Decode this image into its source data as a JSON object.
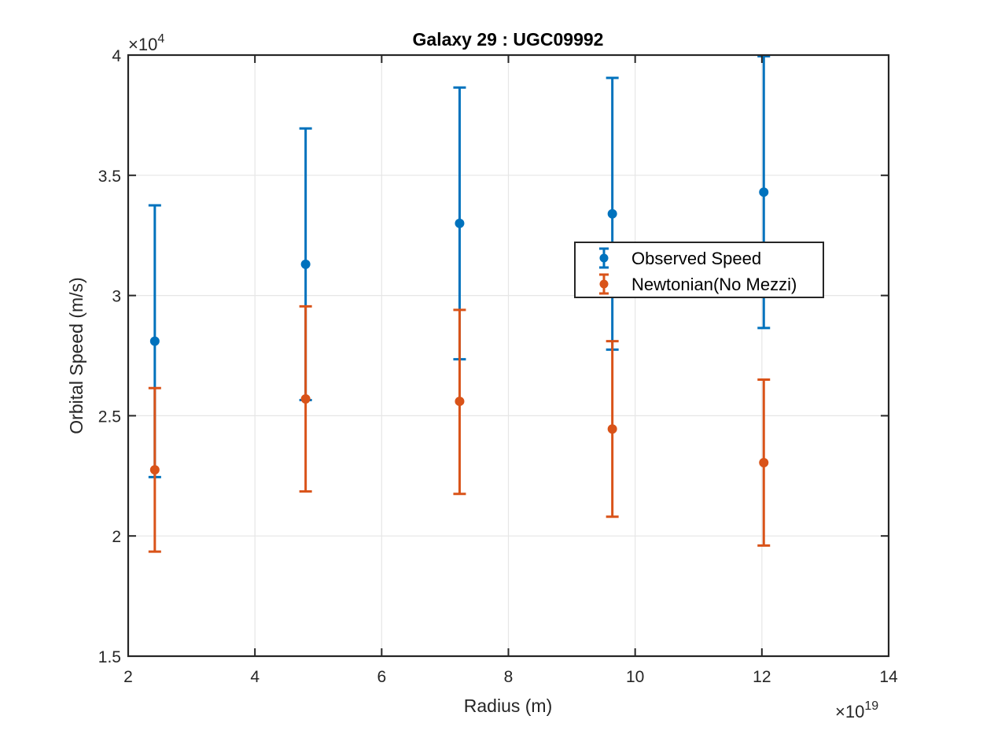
{
  "chart_data": {
    "type": "scatter",
    "title": "Galaxy 29 : UGC09992",
    "xlabel": "Radius (m)",
    "ylabel": "Orbital Speed (m/s)",
    "xlim": [
      2,
      14
    ],
    "ylim": [
      1.5,
      4
    ],
    "x_ticks": [
      2,
      4,
      6,
      8,
      10,
      12,
      14
    ],
    "x_tick_labels": [
      "2",
      "4",
      "6",
      "8",
      "10",
      "12",
      "14"
    ],
    "y_ticks": [
      1.5,
      2,
      2.5,
      3,
      3.5,
      4
    ],
    "y_tick_labels": [
      "1.5",
      "2",
      "2.5",
      "3",
      "3.5",
      "4"
    ],
    "x_multiplier": {
      "base": "×10",
      "exponent": "19"
    },
    "y_multiplier": {
      "base": "×10",
      "exponent": "4"
    },
    "grid": true,
    "legend_position": "center-right",
    "series": [
      {
        "name": "Observed Speed",
        "color": "#0072BD",
        "x": [
          2.42,
          4.8,
          7.23,
          9.64,
          12.03
        ],
        "y": [
          2.81,
          3.13,
          3.3,
          3.34,
          3.43
        ],
        "y_lower": [
          2.245,
          2.565,
          2.735,
          2.775,
          2.865
        ],
        "y_upper": [
          3.375,
          3.695,
          3.865,
          3.905,
          3.995
        ]
      },
      {
        "name": "Newtonian(No Mezzi)",
        "color": "#D95319",
        "x": [
          2.42,
          4.8,
          7.23,
          9.64,
          12.03
        ],
        "y": [
          2.275,
          2.57,
          2.56,
          2.445,
          2.305
        ],
        "y_lower": [
          1.935,
          2.185,
          2.175,
          2.08,
          1.96
        ],
        "y_upper": [
          2.615,
          2.955,
          2.94,
          2.81,
          2.65
        ]
      }
    ]
  }
}
